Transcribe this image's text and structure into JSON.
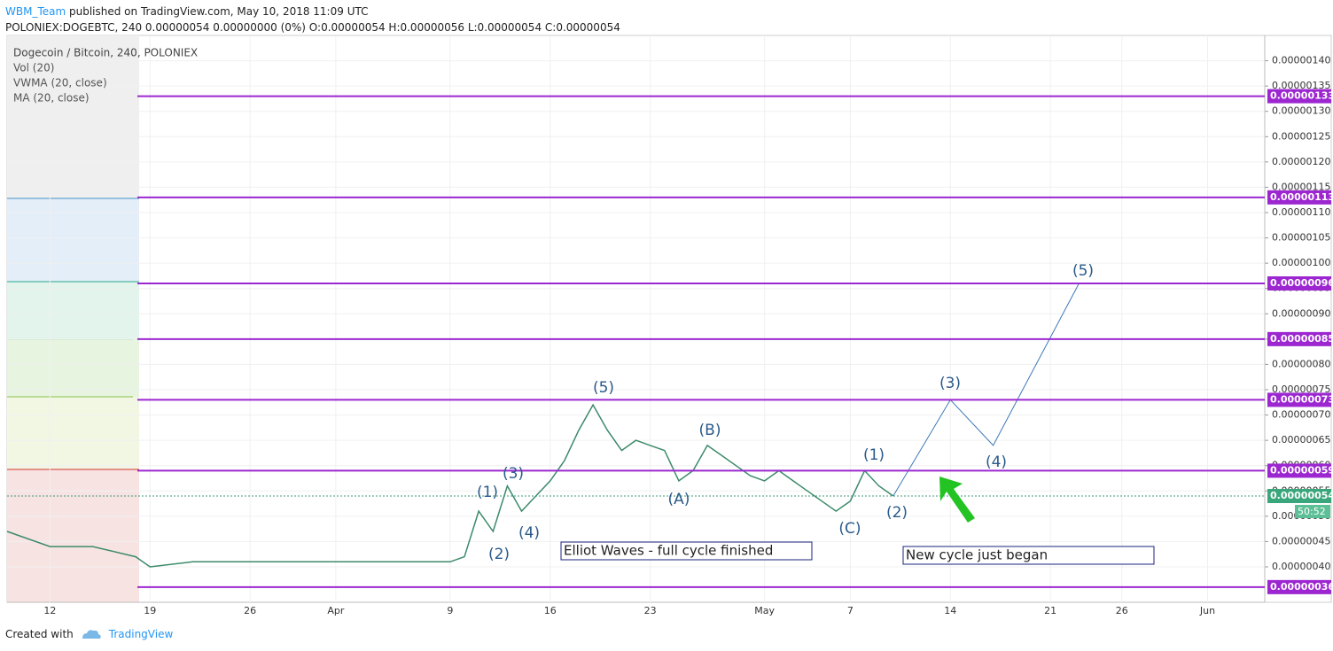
{
  "header": {
    "author": "WBM_Team",
    "published": "published on TradingView.com, May 10, 2018 11:09 UTC",
    "symbol_line": "POLONIEX:DOGEBTC, 240 0.00000054 0.00000000 (0%) O:0.00000054 H:0.00000056 L:0.00000054 C:0.00000054"
  },
  "chart_data": {
    "type": "line",
    "legend": [
      "Dogecoin / Bitcoin, 240, POLONIEX",
      "Vol (20)",
      "VWMA (20, close)",
      "MA (20, close)"
    ],
    "xlim": [
      "Mar 9",
      "Jun 5"
    ],
    "xticks": [
      {
        "value": "Mar 12",
        "label": "12"
      },
      {
        "value": "Mar 19",
        "label": "19"
      },
      {
        "value": "Mar 26",
        "label": "26"
      },
      {
        "value": "Apr 1",
        "label": "Apr"
      },
      {
        "value": "Apr 9",
        "label": "9"
      },
      {
        "value": "Apr 16",
        "label": "16"
      },
      {
        "value": "Apr 23",
        "label": "23"
      },
      {
        "value": "May 1",
        "label": "May"
      },
      {
        "value": "May 7",
        "label": "7"
      },
      {
        "value": "May 14",
        "label": "14"
      },
      {
        "value": "May 21",
        "label": "21"
      },
      {
        "value": "May 26",
        "label": "26"
      },
      {
        "value": "Jun 1",
        "label": "Jun"
      }
    ],
    "ylim": [
      3.3e-07,
      1.45e-06
    ],
    "yticks": [
      {
        "value": 4e-07,
        "label": "0.00000040"
      },
      {
        "value": 4.5e-07,
        "label": "0.00000045"
      },
      {
        "value": 5e-07,
        "label": "0.00000050"
      },
      {
        "value": 5.5e-07,
        "label": "0.00000055"
      },
      {
        "value": 6e-07,
        "label": "0.00000060"
      },
      {
        "value": 6.5e-07,
        "label": "0.00000065"
      },
      {
        "value": 7e-07,
        "label": "0.00000070"
      },
      {
        "value": 7.5e-07,
        "label": "0.00000075"
      },
      {
        "value": 8e-07,
        "label": "0.00000080"
      },
      {
        "value": 8.5e-07,
        "label": "0.00000085"
      },
      {
        "value": 9e-07,
        "label": "0.00000090"
      },
      {
        "value": 9.5e-07,
        "label": "0.00000095"
      },
      {
        "value": 1e-06,
        "label": "0.00000100"
      },
      {
        "value": 1.05e-06,
        "label": "0.00000105"
      },
      {
        "value": 1.1e-06,
        "label": "0.00000110"
      },
      {
        "value": 1.15e-06,
        "label": "0.00000115"
      },
      {
        "value": 1.2e-06,
        "label": "0.00000120"
      },
      {
        "value": 1.25e-06,
        "label": "0.00000125"
      },
      {
        "value": 1.3e-06,
        "label": "0.00000130"
      },
      {
        "value": 1.35e-06,
        "label": "0.00000135"
      },
      {
        "value": 1.4e-06,
        "label": "0.00000140"
      }
    ],
    "grid": true,
    "series": [
      {
        "color": "#3c8a6a",
        "x": [
          "Mar 9",
          "Mar 12",
          "Mar 15",
          "Mar 18",
          "Mar 19",
          "Mar 22",
          "Mar 26",
          "Apr 1",
          "Apr 5",
          "Apr 9",
          "Apr 10",
          "Apr 11",
          "Apr 12",
          "Apr 13",
          "Apr 14",
          "Apr 15",
          "Apr 16",
          "Apr 17",
          "Apr 18",
          "Apr 19",
          "Apr 20",
          "Apr 21",
          "Apr 22",
          "Apr 23",
          "Apr 24",
          "Apr 25",
          "Apr 26",
          "Apr 27",
          "Apr 28",
          "Apr 29",
          "Apr 30",
          "May 1",
          "May 2",
          "May 3",
          "May 4",
          "May 5",
          "May 6",
          "May 7",
          "May 8",
          "May 9",
          "May 10"
        ],
        "values": [
          4.7e-07,
          4.4e-07,
          4.4e-07,
          4.2e-07,
          4e-07,
          4.1e-07,
          4.1e-07,
          4.1e-07,
          4.1e-07,
          4.1e-07,
          4.2e-07,
          5.1e-07,
          4.7e-07,
          5.6e-07,
          5.1e-07,
          5.4e-07,
          5.7e-07,
          6.1e-07,
          6.7e-07,
          7.2e-07,
          6.7e-07,
          6.3e-07,
          6.5e-07,
          6.4e-07,
          6.3e-07,
          5.7e-07,
          5.9e-07,
          6.4e-07,
          6.2e-07,
          6e-07,
          5.8e-07,
          5.7e-07,
          5.9e-07,
          5.7e-07,
          5.5e-07,
          5.3e-07,
          5.1e-07,
          5.3e-07,
          5.9e-07,
          5.6e-07,
          5.4e-07
        ]
      },
      {
        "color": "#3d78b8",
        "x": [
          "May 10",
          "May 14",
          "May 17",
          "May 23"
        ],
        "values": [
          5.4e-07,
          7.3e-07,
          6.4e-07,
          9.6e-07
        ]
      }
    ],
    "levels": [
      {
        "value": 1.33e-06,
        "label": "0.00000133"
      },
      {
        "value": 1.13e-06,
        "label": "0.00000113"
      },
      {
        "value": 9.6e-07,
        "label": "0.00000096"
      },
      {
        "value": 8.5e-07,
        "label": "0.00000085"
      },
      {
        "value": 7.3e-07,
        "label": "0.00000073"
      },
      {
        "value": 5.9e-07,
        "label": "0.00000059"
      },
      {
        "value": 3.6e-07,
        "label": "0.00000036"
      }
    ],
    "level_color": "#9c27d0",
    "last_price": {
      "value": 5.4e-07,
      "label": "0.00000054"
    },
    "countdown": "50:52",
    "wave_labels": [
      "(1)",
      "(2)",
      "(3)",
      "(4)",
      "(5)",
      "(A)",
      "(B)",
      "(C)",
      "(1)",
      "(2)",
      "(3)",
      "(4)",
      "(5)"
    ],
    "annotations": [
      "Elliot Waves - full cycle finished",
      "New cycle just began"
    ]
  },
  "footer": {
    "created": "Created with",
    "brand": "TradingView"
  }
}
